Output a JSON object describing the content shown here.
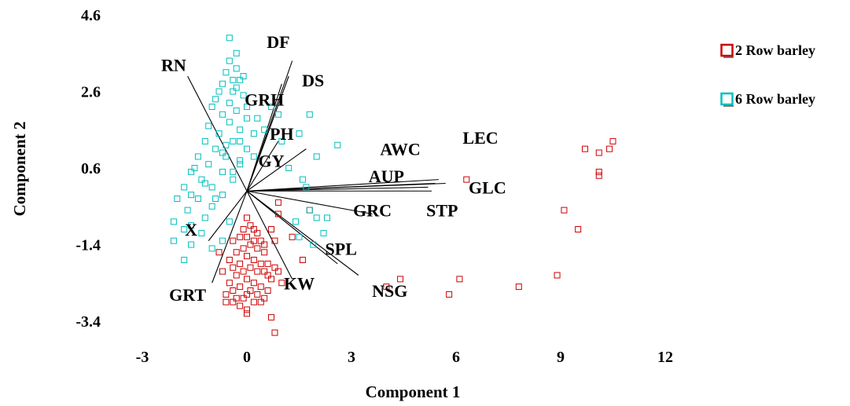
{
  "chart_data": {
    "type": "scatter",
    "title": "",
    "xlabel": "Component 1",
    "ylabel": "Component 2",
    "xlim": [
      -3,
      12
    ],
    "ylim": [
      -3.4,
      4.6
    ],
    "x_ticks": [
      "-3",
      "0",
      "3",
      "6",
      "9",
      "12"
    ],
    "y_ticks": [
      "4.6",
      "2.6",
      "0.6",
      "-1.4",
      "-3.4"
    ],
    "grid": false,
    "legend_position": "top-right",
    "legend": [
      {
        "label": "2 Row barley",
        "color": "#cc0000"
      },
      {
        "label": "6 Row barley",
        "color": "#00bfbf"
      }
    ],
    "series": [
      {
        "name": "2 Row barley",
        "color": "#cc0000",
        "marker": "open-square",
        "points": [
          [
            10.5,
            1.3
          ],
          [
            10.4,
            1.1
          ],
          [
            10.1,
            1.0
          ],
          [
            9.7,
            1.1
          ],
          [
            10.1,
            0.5
          ],
          [
            10.1,
            0.4
          ],
          [
            9.1,
            -0.5
          ],
          [
            9.5,
            -1.0
          ],
          [
            8.9,
            -2.2
          ],
          [
            7.8,
            -2.5
          ],
          [
            6.3,
            0.3
          ],
          [
            6.1,
            -2.3
          ],
          [
            5.8,
            -2.7
          ],
          [
            4.4,
            -2.3
          ],
          [
            4.0,
            -2.5
          ],
          [
            0.0,
            -0.7
          ],
          [
            0.1,
            -0.9
          ],
          [
            0.2,
            -1.0
          ],
          [
            -0.1,
            -1.0
          ],
          [
            0.3,
            -1.1
          ],
          [
            0.0,
            -1.2
          ],
          [
            -0.2,
            -1.2
          ],
          [
            0.2,
            -1.3
          ],
          [
            0.4,
            -1.3
          ],
          [
            -0.4,
            -1.3
          ],
          [
            0.1,
            -1.4
          ],
          [
            -0.1,
            -1.5
          ],
          [
            0.3,
            -1.5
          ],
          [
            0.5,
            -1.6
          ],
          [
            -0.3,
            -1.6
          ],
          [
            0.0,
            -1.7
          ],
          [
            0.2,
            -1.8
          ],
          [
            -0.5,
            -1.8
          ],
          [
            0.4,
            -1.9
          ],
          [
            -0.2,
            -1.9
          ],
          [
            0.1,
            -2.0
          ],
          [
            -0.4,
            -2.0
          ],
          [
            0.3,
            -2.1
          ],
          [
            -0.1,
            -2.1
          ],
          [
            0.6,
            -2.2
          ],
          [
            -0.3,
            -2.2
          ],
          [
            0.0,
            -2.3
          ],
          [
            0.2,
            -2.4
          ],
          [
            -0.5,
            -2.4
          ],
          [
            0.4,
            -2.5
          ],
          [
            -0.2,
            -2.5
          ],
          [
            0.1,
            -2.6
          ],
          [
            -0.4,
            -2.6
          ],
          [
            0.3,
            -2.7
          ],
          [
            0.0,
            -2.7
          ],
          [
            -0.1,
            -2.8
          ],
          [
            0.5,
            -2.8
          ],
          [
            -0.3,
            -2.8
          ],
          [
            0.2,
            -2.9
          ],
          [
            0.4,
            -2.9
          ],
          [
            -0.2,
            -3.0
          ],
          [
            0.0,
            -3.1
          ],
          [
            -0.4,
            -2.9
          ],
          [
            0.6,
            -2.6
          ],
          [
            0.7,
            -2.3
          ],
          [
            0.9,
            -2.1
          ],
          [
            0.6,
            -1.9
          ],
          [
            0.5,
            -1.4
          ],
          [
            0.7,
            -1.0
          ],
          [
            0.9,
            -0.6
          ],
          [
            0.8,
            -1.3
          ],
          [
            1.3,
            -1.2
          ],
          [
            1.6,
            -1.8
          ],
          [
            1.0,
            -2.4
          ],
          [
            0.8,
            -2.0
          ],
          [
            -0.6,
            -2.7
          ],
          [
            -0.7,
            -2.1
          ],
          [
            -0.8,
            -1.6
          ],
          [
            0.0,
            -3.2
          ],
          [
            0.7,
            -3.3
          ],
          [
            0.8,
            -3.7
          ],
          [
            1.8,
            -0.5
          ],
          [
            0.9,
            -0.3
          ],
          [
            -0.6,
            -2.9
          ],
          [
            0.5,
            -2.1
          ]
        ]
      },
      {
        "name": "6 Row barley",
        "color": "#00bfbf",
        "marker": "open-square",
        "points": [
          [
            -0.5,
            4.0
          ],
          [
            -0.3,
            3.2
          ],
          [
            -0.6,
            3.1
          ],
          [
            -0.2,
            2.9
          ],
          [
            -0.7,
            2.8
          ],
          [
            -0.4,
            2.6
          ],
          [
            -0.9,
            2.4
          ],
          [
            -0.1,
            2.5
          ],
          [
            -0.5,
            2.3
          ],
          [
            -1.0,
            2.2
          ],
          [
            -0.3,
            2.1
          ],
          [
            -0.7,
            2.0
          ],
          [
            0.0,
            1.9
          ],
          [
            -0.5,
            1.8
          ],
          [
            -1.1,
            1.7
          ],
          [
            -0.2,
            1.6
          ],
          [
            -0.8,
            1.5
          ],
          [
            0.2,
            1.5
          ],
          [
            -1.2,
            1.3
          ],
          [
            -0.4,
            1.3
          ],
          [
            -0.9,
            1.1
          ],
          [
            0.0,
            1.1
          ],
          [
            -1.4,
            0.9
          ],
          [
            -0.6,
            0.9
          ],
          [
            -0.2,
            0.7
          ],
          [
            -1.1,
            0.7
          ],
          [
            -1.6,
            0.5
          ],
          [
            -0.7,
            0.5
          ],
          [
            -1.3,
            0.3
          ],
          [
            -0.4,
            0.3
          ],
          [
            -1.8,
            0.1
          ],
          [
            -1.0,
            0.1
          ],
          [
            -0.7,
            -0.1
          ],
          [
            -2.0,
            -0.2
          ],
          [
            -1.4,
            -0.2
          ],
          [
            -1.0,
            -0.4
          ],
          [
            -1.7,
            -0.5
          ],
          [
            -2.1,
            -0.8
          ],
          [
            -1.2,
            -0.7
          ],
          [
            -0.5,
            -0.8
          ],
          [
            -1.8,
            -1.0
          ],
          [
            -1.3,
            -1.1
          ],
          [
            -2.1,
            -1.3
          ],
          [
            -1.6,
            -1.4
          ],
          [
            -1.0,
            -1.5
          ],
          [
            -1.8,
            -1.8
          ],
          [
            -0.7,
            -1.3
          ],
          [
            -0.3,
            2.7
          ],
          [
            -0.4,
            2.9
          ],
          [
            -0.1,
            3.0
          ],
          [
            0.0,
            2.2
          ],
          [
            0.3,
            1.9
          ],
          [
            0.5,
            1.6
          ],
          [
            0.7,
            2.2
          ],
          [
            0.9,
            2.0
          ],
          [
            1.5,
            1.5
          ],
          [
            1.0,
            1.3
          ],
          [
            1.8,
            2.0
          ],
          [
            2.6,
            1.2
          ],
          [
            2.0,
            0.9
          ],
          [
            1.2,
            0.6
          ],
          [
            1.6,
            0.3
          ],
          [
            1.7,
            0.1
          ],
          [
            1.8,
            -0.5
          ],
          [
            2.0,
            -0.7
          ],
          [
            1.4,
            -0.8
          ],
          [
            1.9,
            -1.4
          ],
          [
            2.2,
            -1.1
          ],
          [
            1.5,
            -1.2
          ],
          [
            2.3,
            -0.7
          ],
          [
            -0.2,
            1.3
          ],
          [
            -0.4,
            0.5
          ],
          [
            -0.6,
            1.2
          ],
          [
            -0.8,
            2.6
          ],
          [
            -0.5,
            3.4
          ],
          [
            -0.3,
            3.6
          ],
          [
            -0.7,
            1.0
          ],
          [
            -0.2,
            0.8
          ],
          [
            0.2,
            0.9
          ],
          [
            -1.5,
            0.6
          ],
          [
            -1.6,
            -0.1
          ],
          [
            -1.2,
            0.2
          ],
          [
            -0.9,
            -0.2
          ],
          [
            -1.6,
            -0.9
          ]
        ]
      }
    ],
    "loading_vectors": [
      {
        "name": "RN",
        "x": -1.7,
        "y": 3.0,
        "label_x": -2.1,
        "label_y": 3.3
      },
      {
        "name": "DF",
        "x": 1.3,
        "y": 3.4,
        "label_x": 0.9,
        "label_y": 3.9
      },
      {
        "name": "DS",
        "x": 1.2,
        "y": 3.0,
        "label_x": 1.9,
        "label_y": 2.9
      },
      {
        "name": "GRH",
        "x": 1.0,
        "y": 2.8,
        "label_x": 0.5,
        "label_y": 2.4
      },
      {
        "name": "PH",
        "x": 1.7,
        "y": 1.1,
        "label_x": 1.0,
        "label_y": 1.5
      },
      {
        "name": "GY",
        "x": 0.9,
        "y": 1.3,
        "label_x": 0.7,
        "label_y": 0.8
      },
      {
        "name": "AWC",
        "x": 5.5,
        "y": 0.3,
        "label_x": 4.4,
        "label_y": 1.1
      },
      {
        "name": "LEC",
        "x": 5.7,
        "y": 0.2,
        "label_x": 6.7,
        "label_y": 1.4
      },
      {
        "name": "AUP",
        "x": 5.2,
        "y": 0.1,
        "label_x": 4.0,
        "label_y": 0.4
      },
      {
        "name": "GLC",
        "x": 5.3,
        "y": 0.0,
        "label_x": 6.9,
        "label_y": 0.1
      },
      {
        "name": "STP",
        "x": 5.4,
        "y": 0.2,
        "label_x": 5.6,
        "label_y": -0.5
      },
      {
        "name": "GRC",
        "x": 3.6,
        "y": -0.6,
        "label_x": 3.6,
        "label_y": -0.5
      },
      {
        "name": "SPL",
        "x": 3.2,
        "y": -2.2,
        "label_x": 2.7,
        "label_y": -1.5
      },
      {
        "name": "NSG",
        "x": 2.6,
        "y": -1.9,
        "label_x": 4.1,
        "label_y": -2.6
      },
      {
        "name": "KW",
        "x": 1.3,
        "y": -2.3,
        "label_x": 1.5,
        "label_y": -2.4
      },
      {
        "name": "X",
        "x": -1.1,
        "y": -1.3,
        "label_x": -1.6,
        "label_y": -1.0
      },
      {
        "name": "GRT",
        "x": -1.0,
        "y": -2.4,
        "label_x": -1.7,
        "label_y": -2.7
      }
    ]
  }
}
